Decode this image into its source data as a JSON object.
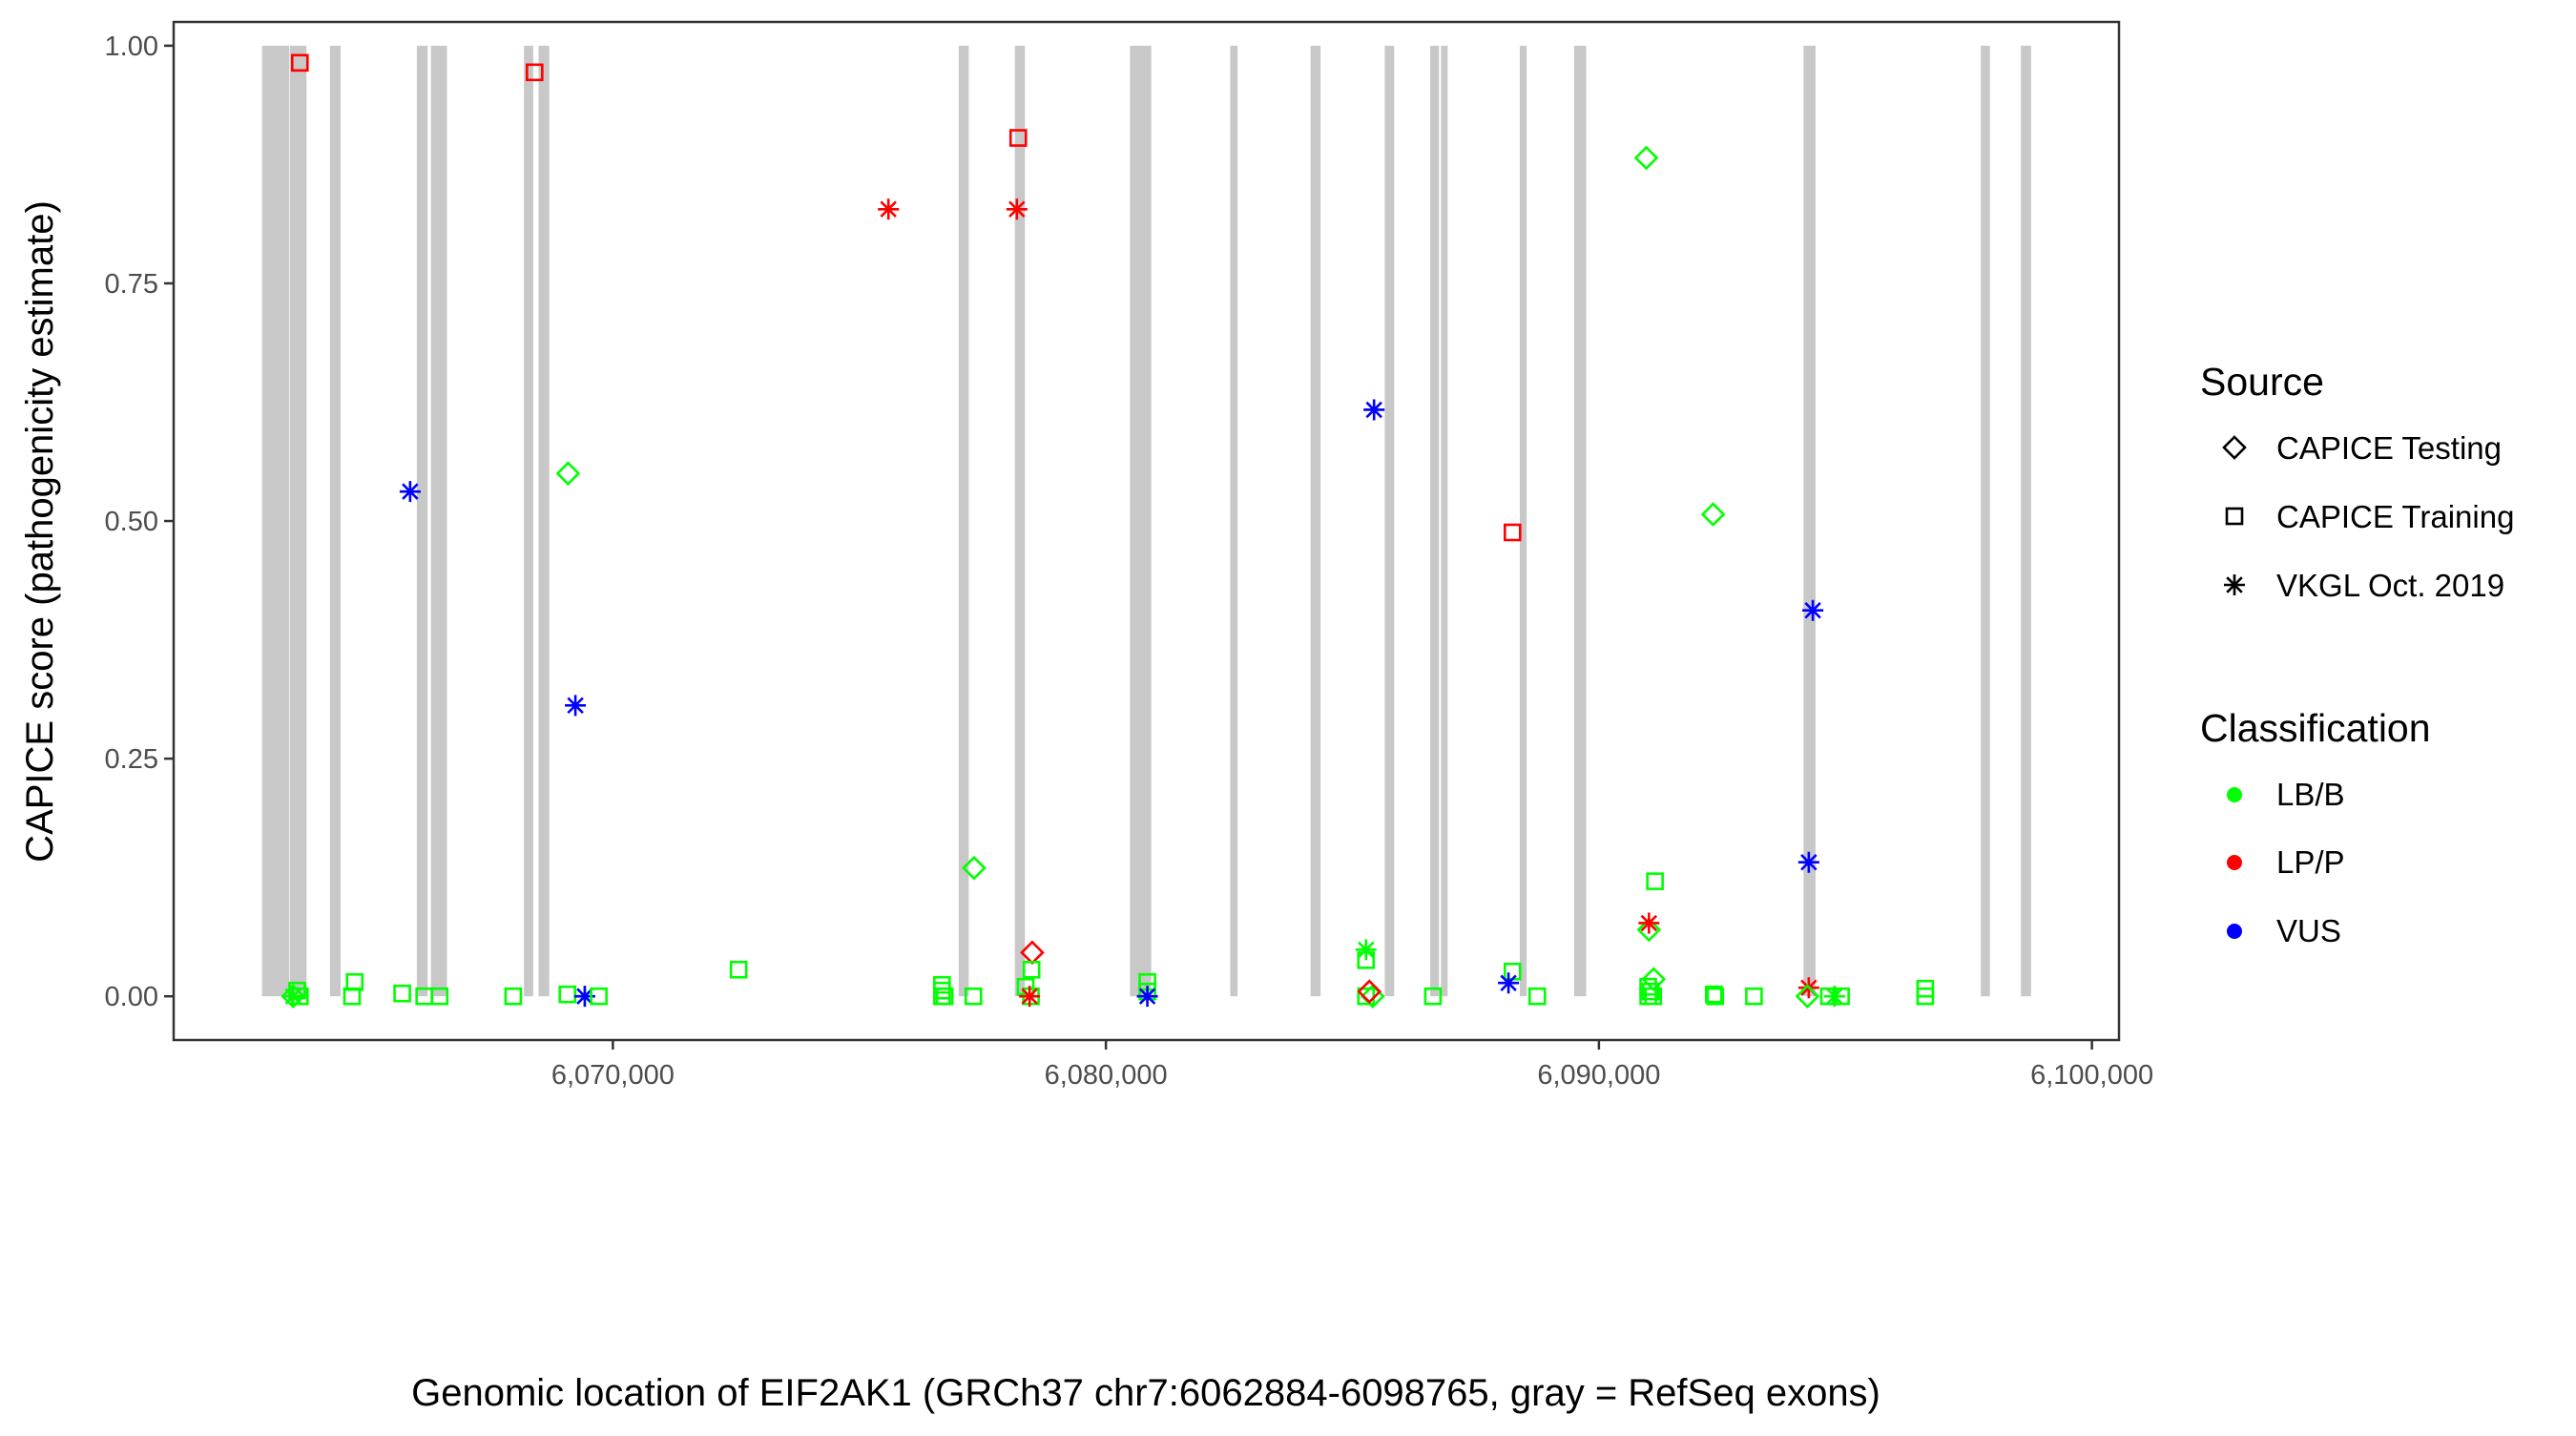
{
  "chart_data": {
    "type": "scatter",
    "xlabel": "Genomic location of EIF2AK1 (GRCh37 chr7:6062884-6098765, gray = RefSeq exons)",
    "ylabel": "CAPICE score (pathogenicity estimate)",
    "xlim": [
      6061091,
      6100549
    ],
    "ylim": [
      -0.046,
      1.025
    ],
    "x_ticks": [
      6070000,
      6080000,
      6090000,
      6100000
    ],
    "x_tick_labels": [
      "6,070,000",
      "6,080,000",
      "6,090,000",
      "6,100,000"
    ],
    "y_ticks": [
      0,
      0.25,
      0.5,
      0.75,
      1.0
    ],
    "y_tick_labels": [
      "0.00",
      "0.25",
      "0.50",
      "0.75",
      "1.00"
    ],
    "grid": false,
    "exon_color": "#c8c8c8",
    "exons": [
      [
        6062884,
        6063434
      ],
      [
        6063448,
        6063786
      ],
      [
        6064262,
        6064478
      ],
      [
        6066024,
        6066242
      ],
      [
        6066310,
        6066635
      ],
      [
        6068196,
        6068385
      ],
      [
        6068493,
        6068710
      ],
      [
        6077015,
        6077218
      ],
      [
        6078154,
        6078357
      ],
      [
        6080488,
        6080921
      ],
      [
        6082522,
        6082672
      ],
      [
        6084151,
        6084354
      ],
      [
        6085656,
        6085847
      ],
      [
        6086578,
        6086756
      ],
      [
        6086797,
        6086932
      ],
      [
        6088396,
        6088534
      ],
      [
        6089497,
        6089741
      ],
      [
        6094150,
        6094394
      ],
      [
        6097745,
        6097931
      ],
      [
        6098559,
        6098765
      ]
    ],
    "legend": {
      "placement": "right",
      "source": {
        "title": "Source",
        "items": [
          {
            "label": "CAPICE Testing",
            "shape": "diamond"
          },
          {
            "label": "CAPICE Training",
            "shape": "square"
          },
          {
            "label": "VKGL Oct. 2019",
            "shape": "asterisk"
          }
        ]
      },
      "classification": {
        "title": "Classification",
        "items": [
          {
            "label": "LB/B",
            "color": "#00ff00"
          },
          {
            "label": "LP/P",
            "color": "#ff0000"
          },
          {
            "label": "VUS",
            "color": "#0000ff"
          }
        ]
      }
    },
    "series_fields": [
      "position",
      "score",
      "source",
      "classification"
    ],
    "points": [
      [
        6063651,
        0.982,
        "CAPICE Training",
        "LP/P"
      ],
      [
        6068412,
        0.972,
        "CAPICE Training",
        "LP/P"
      ],
      [
        6078222,
        0.903,
        "CAPICE Training",
        "LP/P"
      ],
      [
        6075589,
        0.828,
        "VKGL Oct. 2019",
        "LP/P"
      ],
      [
        6078195,
        0.828,
        "VKGL Oct. 2019",
        "LP/P"
      ],
      [
        6065888,
        0.531,
        "VKGL Oct. 2019",
        "VUS"
      ],
      [
        6069091,
        0.55,
        "CAPICE Testing",
        "LB/B"
      ],
      [
        6069240,
        0.306,
        "VKGL Oct. 2019",
        "VUS"
      ],
      [
        6077326,
        0.135,
        "CAPICE Testing",
        "LB/B"
      ],
      [
        6078506,
        0.046,
        "CAPICE Testing",
        "LP/P"
      ],
      [
        6072551,
        0.028,
        "CAPICE Training",
        "LB/B"
      ],
      [
        6078492,
        0.028,
        "CAPICE Training",
        "LB/B"
      ],
      [
        6063515,
        0.0,
        "CAPICE Testing",
        "LB/B"
      ],
      [
        6063597,
        0.006,
        "CAPICE Training",
        "LB/B"
      ],
      [
        6063651,
        0.0,
        "CAPICE Training",
        "LB/B"
      ],
      [
        6063515,
        0.0,
        "VKGL Oct. 2019",
        "LB/B"
      ],
      [
        6064763,
        0.015,
        "CAPICE Training",
        "LB/B"
      ],
      [
        6064709,
        0.0,
        "CAPICE Training",
        "LB/B"
      ],
      [
        6065727,
        0.003,
        "CAPICE Training",
        "LB/B"
      ],
      [
        6066174,
        0.0,
        "CAPICE Training",
        "LB/B"
      ],
      [
        6066486,
        0.0,
        "CAPICE Training",
        "LB/B"
      ],
      [
        6067978,
        0.0,
        "CAPICE Training",
        "LB/B"
      ],
      [
        6069078,
        0.002,
        "CAPICE Training",
        "LB/B"
      ],
      [
        6069430,
        0.0,
        "VKGL Oct. 2019",
        "LB/B"
      ],
      [
        6069430,
        0.0,
        "VKGL Oct. 2019",
        "VUS"
      ],
      [
        6069715,
        0.0,
        "CAPICE Training",
        "LB/B"
      ],
      [
        6076675,
        0.012,
        "CAPICE Training",
        "LB/B"
      ],
      [
        6076675,
        0.006,
        "CAPICE Training",
        "LB/B"
      ],
      [
        6076675,
        0.0,
        "CAPICE Training",
        "LB/B"
      ],
      [
        6076730,
        0.0,
        "CAPICE Training",
        "LB/B"
      ],
      [
        6077313,
        0.0,
        "CAPICE Training",
        "LB/B"
      ],
      [
        6078371,
        0.01,
        "CAPICE Training",
        "LB/B"
      ],
      [
        6078480,
        0.0,
        "CAPICE Training",
        "LB/B"
      ],
      [
        6078453,
        0.0,
        "VKGL Oct. 2019",
        "LP/P"
      ],
      [
        6080841,
        0.015,
        "CAPICE Training",
        "LB/B"
      ],
      [
        6080841,
        0.005,
        "CAPICE Training",
        "LB/B"
      ],
      [
        6080841,
        0.0,
        "VKGL Oct. 2019",
        "VUS"
      ],
      [
        6090961,
        0.882,
        "CAPICE Testing",
        "LB/B"
      ],
      [
        6085439,
        0.617,
        "VKGL Oct. 2019",
        "VUS"
      ],
      [
        6092317,
        0.507,
        "CAPICE Testing",
        "LB/B"
      ],
      [
        6088247,
        0.488,
        "CAPICE Training",
        "LP/P"
      ],
      [
        6094339,
        0.406,
        "VKGL Oct. 2019",
        "VUS"
      ],
      [
        6094257,
        0.141,
        "VKGL Oct. 2019",
        "VUS"
      ],
      [
        6091137,
        0.121,
        "CAPICE Training",
        "LB/B"
      ],
      [
        6091015,
        0.07,
        "CAPICE Testing",
        "LB/B"
      ],
      [
        6091015,
        0.077,
        "VKGL Oct. 2019",
        "LP/P"
      ],
      [
        6085276,
        0.049,
        "VKGL Oct. 2019",
        "LB/B"
      ],
      [
        6085276,
        0.038,
        "CAPICE Training",
        "LB/B"
      ],
      [
        6085276,
        0.0,
        "CAPICE Training",
        "LB/B"
      ],
      [
        6085412,
        0.0,
        "CAPICE Testing",
        "LB/B"
      ],
      [
        6085344,
        0.005,
        "CAPICE Testing",
        "LP/P"
      ],
      [
        6088247,
        0.026,
        "CAPICE Training",
        "LB/B"
      ],
      [
        6088166,
        0.014,
        "VKGL Oct. 2019",
        "VUS"
      ],
      [
        6088749,
        0.0,
        "CAPICE Training",
        "LB/B"
      ],
      [
        6086633,
        0.0,
        "CAPICE Training",
        "LB/B"
      ],
      [
        6091110,
        0.018,
        "CAPICE Testing",
        "LB/B"
      ],
      [
        6091000,
        0.01,
        "CAPICE Training",
        "LB/B"
      ],
      [
        6091050,
        0.005,
        "CAPICE Training",
        "LB/B"
      ],
      [
        6091000,
        0.0,
        "CAPICE Training",
        "LB/B"
      ],
      [
        6091100,
        0.0,
        "CAPICE Training",
        "LB/B"
      ],
      [
        6092358,
        0.0,
        "CAPICE Training",
        "LB/B"
      ],
      [
        6092330,
        0.002,
        "CAPICE Training",
        "LB/B"
      ],
      [
        6093145,
        0.0,
        "CAPICE Training",
        "LB/B"
      ],
      [
        6094257,
        0.009,
        "VKGL Oct. 2019",
        "LP/P"
      ],
      [
        6094230,
        0.0,
        "CAPICE Testing",
        "LB/B"
      ],
      [
        6094666,
        0.0,
        "CAPICE Training",
        "LB/B"
      ],
      [
        6094910,
        0.0,
        "CAPICE Training",
        "LB/B"
      ],
      [
        6094780,
        0.0,
        "VKGL Oct. 2019",
        "LB/B"
      ],
      [
        6096618,
        0.008,
        "CAPICE Training",
        "LB/B"
      ],
      [
        6096618,
        0.0,
        "CAPICE Training",
        "LB/B"
      ]
    ]
  }
}
